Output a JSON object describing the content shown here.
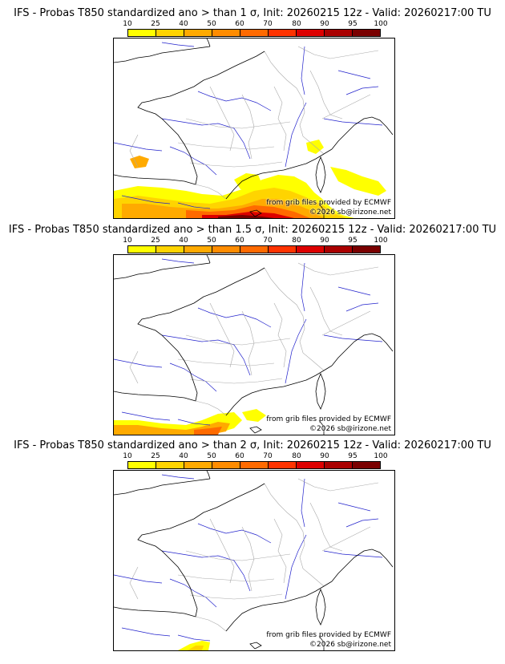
{
  "panels": [
    {
      "title": "IFS - Probas T850  standardized ano > than 1 σ, Init: 20260215 12z - Valid: 20260217:00 TU",
      "credit_source": "from grib files provided by ECMWF",
      "credit_copyright": "©2026 sb@irizone.net",
      "anomaly_extent": "large"
    },
    {
      "title": "IFS - Probas T850  standardized ano > than 1.5 σ, Init: 20260215 12z - Valid: 20260217:00 TU",
      "credit_source": "from grib files provided by ECMWF",
      "credit_copyright": "©2026 sb@irizone.net",
      "anomaly_extent": "medium"
    },
    {
      "title": "IFS - Probas T850  standardized ano > than 2 σ, Init: 20260215 12z - Valid: 20260217:00 TU",
      "credit_source": "from grib files provided by ECMWF",
      "credit_copyright": "©2026 sb@irizone.net",
      "anomaly_extent": "small"
    }
  ],
  "colorbar": {
    "ticks": [
      "10",
      "25",
      "40",
      "50",
      "60",
      "70",
      "80",
      "90",
      "95",
      "100"
    ],
    "colors": [
      "#ffff00",
      "#ffd400",
      "#ffaa00",
      "#ff8c00",
      "#ff6a00",
      "#ff3300",
      "#dd0000",
      "#aa0000",
      "#7a0000"
    ]
  },
  "map_colors": {
    "coast": "#000000",
    "borders": "#aaaaaa",
    "rivers": "#2222cc"
  }
}
